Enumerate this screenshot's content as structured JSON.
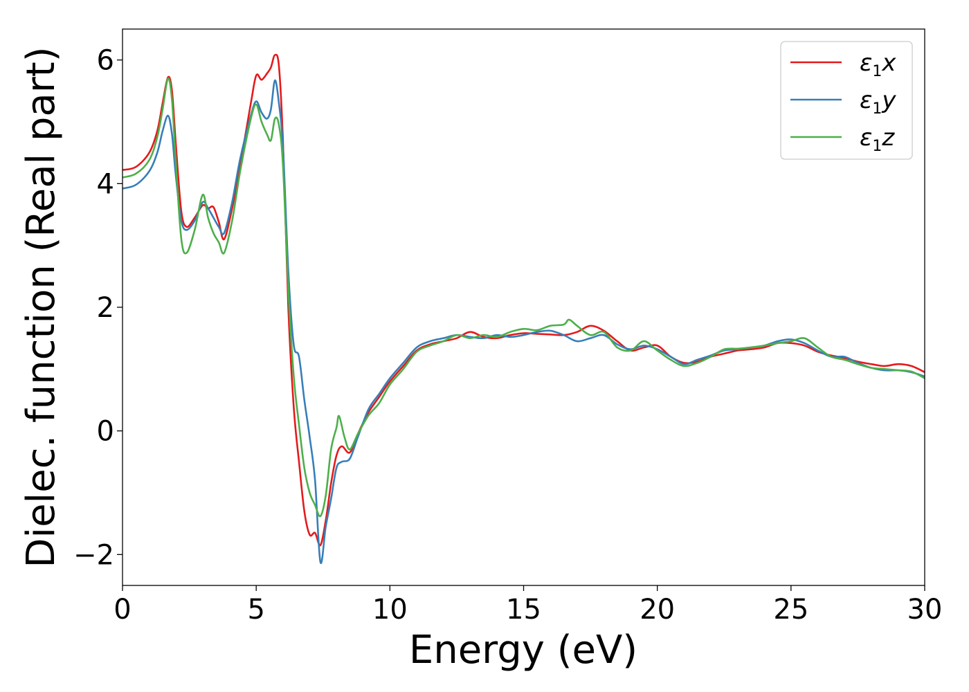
{
  "chart_data": {
    "type": "line",
    "xlabel": "Energy (eV)",
    "ylabel": "Dielec. function (Real part)",
    "xlim": [
      0,
      30
    ],
    "ylim": [
      -2.5,
      6.5
    ],
    "xticks": [
      0,
      5,
      10,
      15,
      20,
      25,
      30
    ],
    "xtick_labels": [
      "0",
      "5",
      "10",
      "15",
      "20",
      "25",
      "30"
    ],
    "yticks": [
      -2,
      0,
      2,
      4,
      6
    ],
    "ytick_labels": [
      "−2",
      "0",
      "2",
      "4",
      "6"
    ],
    "grid": false,
    "legend_position": "top-right",
    "series": [
      {
        "name": "ε1x",
        "legend_base": "ε",
        "legend_sub": "1",
        "legend_suffix": "x",
        "color": "#e41a1c",
        "points": [
          [
            0,
            4.22
          ],
          [
            0.5,
            4.27
          ],
          [
            1.0,
            4.5
          ],
          [
            1.3,
            4.85
          ],
          [
            1.5,
            5.3
          ],
          [
            1.7,
            5.72
          ],
          [
            1.85,
            5.5
          ],
          [
            2.0,
            4.6
          ],
          [
            2.2,
            3.55
          ],
          [
            2.4,
            3.3
          ],
          [
            2.7,
            3.45
          ],
          [
            3.0,
            3.65
          ],
          [
            3.2,
            3.6
          ],
          [
            3.4,
            3.62
          ],
          [
            3.6,
            3.38
          ],
          [
            3.8,
            3.1
          ],
          [
            4.1,
            3.6
          ],
          [
            4.4,
            4.3
          ],
          [
            4.8,
            5.3
          ],
          [
            5.0,
            5.75
          ],
          [
            5.2,
            5.68
          ],
          [
            5.4,
            5.78
          ],
          [
            5.55,
            5.88
          ],
          [
            5.7,
            6.08
          ],
          [
            5.85,
            5.9
          ],
          [
            6.0,
            4.7
          ],
          [
            6.2,
            2.0
          ],
          [
            6.4,
            0.4
          ],
          [
            6.6,
            -0.5
          ],
          [
            6.8,
            -1.3
          ],
          [
            7.0,
            -1.68
          ],
          [
            7.2,
            -1.65
          ],
          [
            7.4,
            -1.85
          ],
          [
            7.6,
            -1.45
          ],
          [
            7.8,
            -0.85
          ],
          [
            8.0,
            -0.4
          ],
          [
            8.2,
            -0.25
          ],
          [
            8.5,
            -0.35
          ],
          [
            8.8,
            -0.05
          ],
          [
            9.2,
            0.3
          ],
          [
            9.6,
            0.55
          ],
          [
            10.0,
            0.8
          ],
          [
            10.5,
            1.05
          ],
          [
            11.0,
            1.3
          ],
          [
            11.5,
            1.4
          ],
          [
            12.0,
            1.45
          ],
          [
            12.5,
            1.5
          ],
          [
            13.0,
            1.6
          ],
          [
            13.5,
            1.52
          ],
          [
            14.0,
            1.5
          ],
          [
            14.5,
            1.55
          ],
          [
            15.0,
            1.58
          ],
          [
            15.5,
            1.57
          ],
          [
            16.0,
            1.56
          ],
          [
            16.5,
            1.55
          ],
          [
            17.0,
            1.6
          ],
          [
            17.5,
            1.7
          ],
          [
            18.0,
            1.62
          ],
          [
            18.5,
            1.45
          ],
          [
            19.0,
            1.3
          ],
          [
            19.5,
            1.35
          ],
          [
            20.0,
            1.38
          ],
          [
            20.5,
            1.2
          ],
          [
            21.0,
            1.1
          ],
          [
            21.5,
            1.12
          ],
          [
            22.0,
            1.2
          ],
          [
            22.5,
            1.25
          ],
          [
            23.0,
            1.3
          ],
          [
            23.5,
            1.32
          ],
          [
            24.0,
            1.35
          ],
          [
            24.5,
            1.42
          ],
          [
            25.0,
            1.42
          ],
          [
            25.5,
            1.38
          ],
          [
            26.0,
            1.28
          ],
          [
            26.5,
            1.22
          ],
          [
            27.0,
            1.18
          ],
          [
            27.5,
            1.12
          ],
          [
            28.0,
            1.08
          ],
          [
            28.5,
            1.05
          ],
          [
            29.0,
            1.08
          ],
          [
            29.5,
            1.05
          ],
          [
            30.0,
            0.95
          ]
        ]
      },
      {
        "name": "ε1y",
        "legend_base": "ε",
        "legend_sub": "1",
        "legend_suffix": "y",
        "color": "#377eb8",
        "points": [
          [
            0,
            3.92
          ],
          [
            0.5,
            3.98
          ],
          [
            1.0,
            4.2
          ],
          [
            1.3,
            4.5
          ],
          [
            1.5,
            4.85
          ],
          [
            1.7,
            5.1
          ],
          [
            1.85,
            4.8
          ],
          [
            2.0,
            4.1
          ],
          [
            2.2,
            3.4
          ],
          [
            2.4,
            3.25
          ],
          [
            2.7,
            3.4
          ],
          [
            3.0,
            3.7
          ],
          [
            3.2,
            3.6
          ],
          [
            3.4,
            3.45
          ],
          [
            3.6,
            3.3
          ],
          [
            3.8,
            3.2
          ],
          [
            4.1,
            3.7
          ],
          [
            4.4,
            4.4
          ],
          [
            4.8,
            5.1
          ],
          [
            5.0,
            5.33
          ],
          [
            5.2,
            5.15
          ],
          [
            5.4,
            5.05
          ],
          [
            5.55,
            5.2
          ],
          [
            5.7,
            5.67
          ],
          [
            5.85,
            5.3
          ],
          [
            6.0,
            4.6
          ],
          [
            6.2,
            2.6
          ],
          [
            6.4,
            1.4
          ],
          [
            6.6,
            1.2
          ],
          [
            6.8,
            0.5
          ],
          [
            7.0,
            -0.1
          ],
          [
            7.2,
            -0.8
          ],
          [
            7.4,
            -2.12
          ],
          [
            7.6,
            -1.55
          ],
          [
            7.8,
            -1.1
          ],
          [
            8.0,
            -0.6
          ],
          [
            8.2,
            -0.5
          ],
          [
            8.5,
            -0.45
          ],
          [
            8.8,
            -0.1
          ],
          [
            9.2,
            0.35
          ],
          [
            9.6,
            0.6
          ],
          [
            10.0,
            0.85
          ],
          [
            10.5,
            1.1
          ],
          [
            11.0,
            1.35
          ],
          [
            11.5,
            1.45
          ],
          [
            12.0,
            1.5
          ],
          [
            12.5,
            1.55
          ],
          [
            13.0,
            1.52
          ],
          [
            13.5,
            1.5
          ],
          [
            14.0,
            1.55
          ],
          [
            14.5,
            1.52
          ],
          [
            15.0,
            1.55
          ],
          [
            15.5,
            1.6
          ],
          [
            16.0,
            1.62
          ],
          [
            16.5,
            1.55
          ],
          [
            17.0,
            1.45
          ],
          [
            17.5,
            1.5
          ],
          [
            18.0,
            1.55
          ],
          [
            18.5,
            1.4
          ],
          [
            19.0,
            1.32
          ],
          [
            19.5,
            1.38
          ],
          [
            20.0,
            1.32
          ],
          [
            20.5,
            1.2
          ],
          [
            21.0,
            1.08
          ],
          [
            21.5,
            1.15
          ],
          [
            22.0,
            1.22
          ],
          [
            22.5,
            1.3
          ],
          [
            23.0,
            1.32
          ],
          [
            23.5,
            1.35
          ],
          [
            24.0,
            1.38
          ],
          [
            24.5,
            1.45
          ],
          [
            25.0,
            1.48
          ],
          [
            25.5,
            1.42
          ],
          [
            26.0,
            1.3
          ],
          [
            26.5,
            1.2
          ],
          [
            27.0,
            1.2
          ],
          [
            27.5,
            1.1
          ],
          [
            28.0,
            1.02
          ],
          [
            28.5,
            0.98
          ],
          [
            29.0,
            0.98
          ],
          [
            29.5,
            0.95
          ],
          [
            30.0,
            0.88
          ]
        ]
      },
      {
        "name": "ε1z",
        "legend_base": "ε",
        "legend_sub": "1",
        "legend_suffix": "z",
        "color": "#4daf4a",
        "points": [
          [
            0,
            4.1
          ],
          [
            0.5,
            4.16
          ],
          [
            1.0,
            4.38
          ],
          [
            1.3,
            4.75
          ],
          [
            1.5,
            5.2
          ],
          [
            1.7,
            5.7
          ],
          [
            1.85,
            5.35
          ],
          [
            2.0,
            4.3
          ],
          [
            2.2,
            3.1
          ],
          [
            2.4,
            2.88
          ],
          [
            2.7,
            3.25
          ],
          [
            3.0,
            3.82
          ],
          [
            3.2,
            3.45
          ],
          [
            3.4,
            3.2
          ],
          [
            3.6,
            3.05
          ],
          [
            3.8,
            2.88
          ],
          [
            4.1,
            3.4
          ],
          [
            4.4,
            4.2
          ],
          [
            4.8,
            5.05
          ],
          [
            5.0,
            5.28
          ],
          [
            5.2,
            5.0
          ],
          [
            5.4,
            4.8
          ],
          [
            5.55,
            4.7
          ],
          [
            5.7,
            5.05
          ],
          [
            5.85,
            4.95
          ],
          [
            6.0,
            4.3
          ],
          [
            6.2,
            2.3
          ],
          [
            6.4,
            0.9
          ],
          [
            6.6,
            0.1
          ],
          [
            6.8,
            -0.6
          ],
          [
            7.0,
            -1.0
          ],
          [
            7.2,
            -1.2
          ],
          [
            7.4,
            -1.38
          ],
          [
            7.6,
            -1.05
          ],
          [
            7.8,
            -0.3
          ],
          [
            8.0,
            0.05
          ],
          [
            8.1,
            0.24
          ],
          [
            8.3,
            -0.1
          ],
          [
            8.5,
            -0.3
          ],
          [
            8.8,
            -0.05
          ],
          [
            9.2,
            0.25
          ],
          [
            9.6,
            0.45
          ],
          [
            10.0,
            0.75
          ],
          [
            10.5,
            1.0
          ],
          [
            11.0,
            1.28
          ],
          [
            11.5,
            1.38
          ],
          [
            12.0,
            1.45
          ],
          [
            12.5,
            1.55
          ],
          [
            13.0,
            1.5
          ],
          [
            13.5,
            1.55
          ],
          [
            14.0,
            1.52
          ],
          [
            14.5,
            1.6
          ],
          [
            15.0,
            1.65
          ],
          [
            15.5,
            1.63
          ],
          [
            16.0,
            1.7
          ],
          [
            16.5,
            1.72
          ],
          [
            16.7,
            1.8
          ],
          [
            17.0,
            1.7
          ],
          [
            17.5,
            1.55
          ],
          [
            18.0,
            1.6
          ],
          [
            18.5,
            1.35
          ],
          [
            19.0,
            1.3
          ],
          [
            19.5,
            1.45
          ],
          [
            20.0,
            1.3
          ],
          [
            20.5,
            1.15
          ],
          [
            21.0,
            1.05
          ],
          [
            21.5,
            1.1
          ],
          [
            22.0,
            1.2
          ],
          [
            22.5,
            1.32
          ],
          [
            23.0,
            1.33
          ],
          [
            23.5,
            1.35
          ],
          [
            24.0,
            1.38
          ],
          [
            24.5,
            1.42
          ],
          [
            25.0,
            1.45
          ],
          [
            25.5,
            1.5
          ],
          [
            26.0,
            1.35
          ],
          [
            26.5,
            1.2
          ],
          [
            27.0,
            1.15
          ],
          [
            27.5,
            1.08
          ],
          [
            28.0,
            1.02
          ],
          [
            28.5,
            1.0
          ],
          [
            29.0,
            0.98
          ],
          [
            29.5,
            0.96
          ],
          [
            30.0,
            0.85
          ]
        ]
      }
    ]
  }
}
